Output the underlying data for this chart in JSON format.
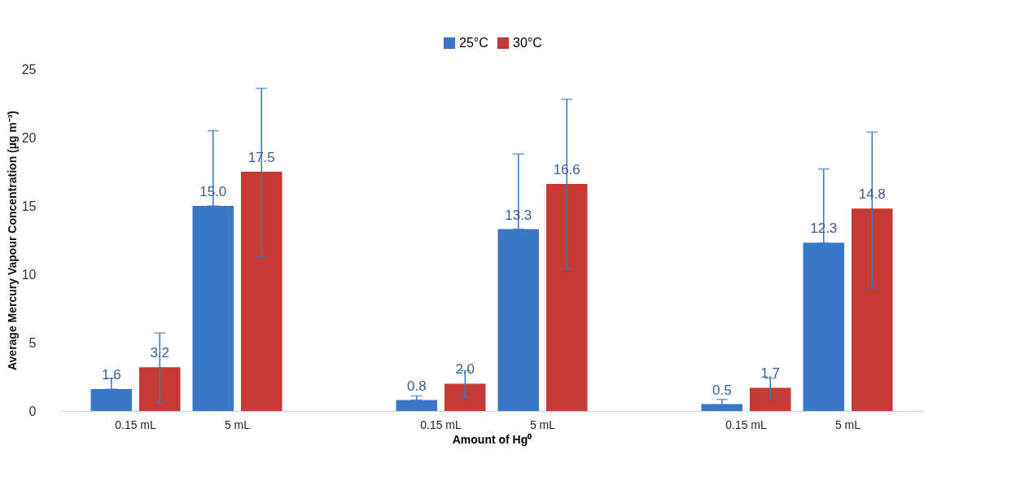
{
  "chart_data": {
    "type": "bar",
    "categories": [
      "0.15 mL",
      "5 mL",
      null,
      "0.15 mL",
      "5 mL",
      null,
      "0.15 mL",
      "5 mL"
    ],
    "xlabel": "Amount of Hg⁰",
    "ylabel": "Average Mercury Vapour Concentration (µg m⁻³)",
    "ylim": [
      0,
      25
    ],
    "yticks": [
      0,
      5,
      10,
      15,
      20,
      25
    ],
    "grid": false,
    "legend": "top",
    "series": [
      {
        "name": "25°C",
        "color": "#3a77c6",
        "values": [
          1.6,
          15.0,
          null,
          0.8,
          13.3,
          null,
          0.5,
          12.3
        ],
        "value_labels": [
          "1.6",
          "15.0",
          null,
          "0.8",
          "13.3",
          null,
          "0.5",
          "12.3"
        ],
        "errors": [
          [
            1.6,
            2.4
          ],
          [
            15.0,
            20.5
          ],
          null,
          [
            0.8,
            1.1
          ],
          [
            13.3,
            18.8
          ],
          null,
          [
            0.15,
            0.85
          ],
          [
            12.3,
            17.7
          ]
        ]
      },
      {
        "name": "30°C",
        "color": "#c43a35",
        "values": [
          3.2,
          17.5,
          null,
          2.0,
          16.6,
          null,
          1.7,
          14.8
        ],
        "value_labels": [
          "3.2",
          "17.5",
          null,
          "2.0",
          "16.6",
          null,
          "1.7",
          "14.8"
        ],
        "errors": [
          [
            0.6,
            5.7
          ],
          [
            11.3,
            23.6
          ],
          null,
          [
            1.0,
            2.95
          ],
          [
            10.4,
            22.8
          ],
          null,
          [
            0.85,
            2.4
          ],
          [
            9.0,
            20.4
          ]
        ]
      }
    ]
  }
}
